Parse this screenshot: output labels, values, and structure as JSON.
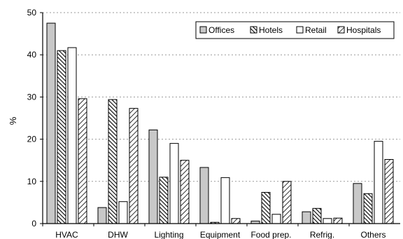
{
  "chart_data": {
    "type": "bar",
    "title": "",
    "xlabel": "",
    "ylabel": "%",
    "ylim": [
      0,
      50
    ],
    "yticks": [
      0,
      10,
      20,
      30,
      40,
      50
    ],
    "grid": "horizontal dotted",
    "legend_position": "top-right",
    "categories": [
      "HVAC",
      "DHW",
      "Lighting",
      "Equipment",
      "Food prep.",
      "Refrig.",
      "Others"
    ],
    "series": [
      {
        "name": "Offices",
        "pattern": "solid-gray",
        "color": "#c8c8c8",
        "values": [
          47.5,
          3.8,
          22.2,
          13.3,
          0.6,
          2.8,
          9.5
        ]
      },
      {
        "name": "Hotels",
        "pattern": "dense-hatch",
        "color": "#000000",
        "values": [
          41.0,
          29.4,
          11.0,
          0.3,
          7.4,
          3.6,
          7.1
        ]
      },
      {
        "name": "Retail",
        "pattern": "white",
        "color": "#ffffff",
        "values": [
          41.7,
          5.2,
          19.0,
          10.9,
          2.2,
          1.2,
          19.5
        ]
      },
      {
        "name": "Hospitals",
        "pattern": "hatch",
        "color": "#000000",
        "values": [
          29.6,
          27.3,
          15.0,
          1.2,
          10.0,
          1.3,
          15.2
        ]
      }
    ]
  }
}
